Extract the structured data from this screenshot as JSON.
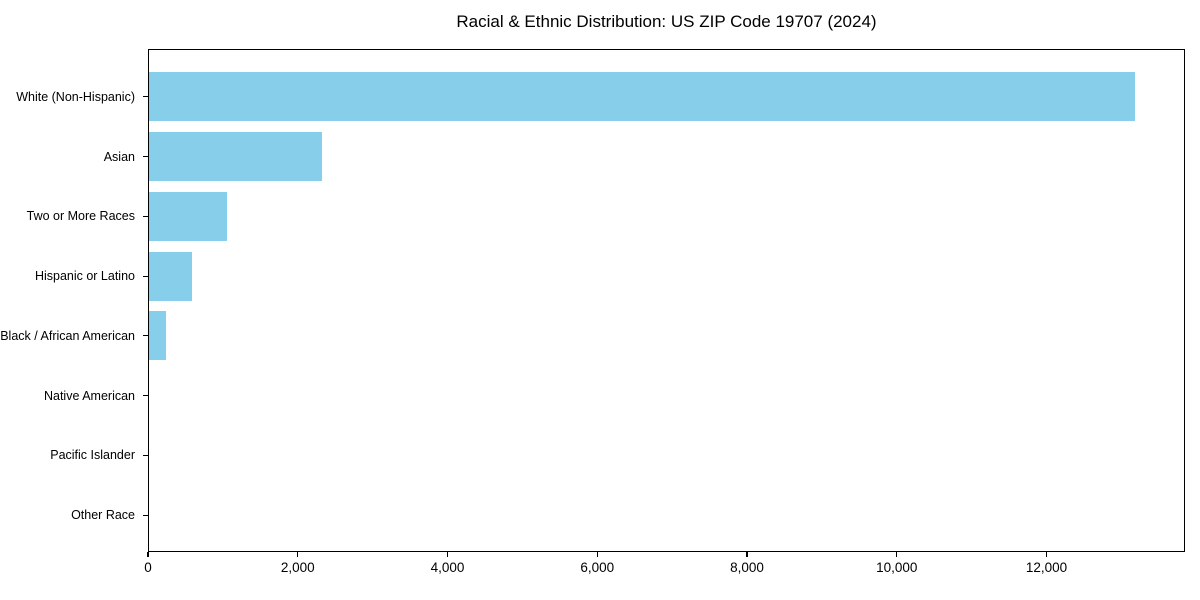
{
  "page": {
    "background_color": "#FFFFFF"
  },
  "chart_data": {
    "type": "bar",
    "orientation": "horizontal",
    "title": "Racial & Ethnic Distribution: US ZIP Code 19707 (2024)",
    "categories": [
      "White (Non-Hispanic)",
      "Asian",
      "Two or More Races",
      "Hispanic or Latino",
      "Black / African American",
      "Native American",
      "Pacific Islander",
      "Other Race"
    ],
    "values": [
      13190,
      2320,
      1040,
      570,
      230,
      0,
      0,
      0
    ],
    "xlabel": "",
    "ylabel": "",
    "xlim": [
      0,
      13850
    ],
    "xticks": [
      0,
      2000,
      4000,
      6000,
      8000,
      10000,
      12000
    ],
    "xtick_labels": [
      "0",
      "2,000",
      "4,000",
      "6,000",
      "8,000",
      "10,000",
      "12,000"
    ],
    "grid": false,
    "legend": "none",
    "bar_color": "#87CEEB",
    "axis_color": "#000000",
    "text_color": "#000000"
  }
}
